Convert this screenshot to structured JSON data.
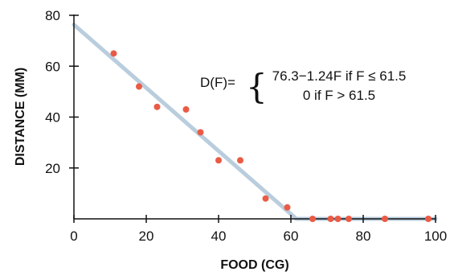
{
  "chart_data": {
    "type": "scatter",
    "title": "",
    "xlabel": "FOOD (CG)",
    "ylabel": "DISTANCE (MM)",
    "xlim": [
      0,
      100
    ],
    "ylim": [
      0,
      80
    ],
    "x_ticks": [
      0,
      20,
      40,
      60,
      80,
      100
    ],
    "y_ticks": [
      20,
      40,
      60,
      80
    ],
    "grid": false,
    "series": [
      {
        "type": "scatter",
        "color": "#ea5b45",
        "points": [
          [
            11,
            65
          ],
          [
            18,
            52
          ],
          [
            23,
            44
          ],
          [
            31,
            43
          ],
          [
            35,
            34
          ],
          [
            40,
            23
          ],
          [
            46,
            23
          ],
          [
            53,
            8
          ],
          [
            59,
            4.5
          ],
          [
            66,
            0
          ],
          [
            71,
            0
          ],
          [
            73,
            0
          ],
          [
            76,
            0
          ],
          [
            86,
            0
          ],
          [
            98,
            0
          ]
        ]
      },
      {
        "type": "line",
        "color": "#b9cddd",
        "points": [
          [
            0,
            76.3
          ],
          [
            61.5,
            0
          ],
          [
            100,
            0
          ]
        ]
      }
    ],
    "annotation": {
      "lhs": "D(F)=",
      "brace": "{",
      "case1": "76.3−1.24F if F ≤ 61.5",
      "case2": "0 if F > 61.5"
    }
  }
}
